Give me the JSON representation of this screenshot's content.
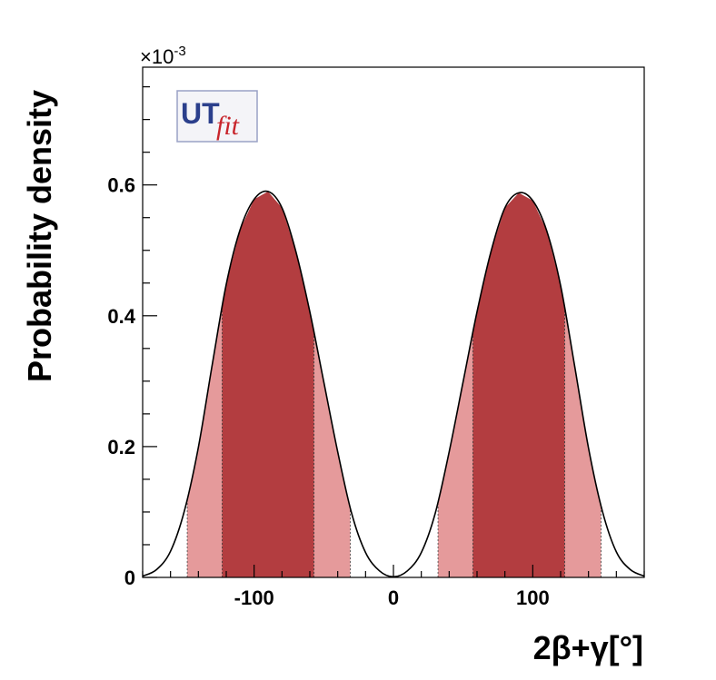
{
  "chart_data": {
    "type": "area",
    "xlabel": "2β+γ[°]",
    "ylabel": "Probability density",
    "y_exponent_label": "×10",
    "y_exponent_power": "-3",
    "xlim": [
      -180,
      180
    ],
    "ylim": [
      0,
      0.00078
    ],
    "x_ticks": [
      {
        "value": -100,
        "label": "-100"
      },
      {
        "value": 0,
        "label": "0"
      },
      {
        "value": 100,
        "label": "100"
      }
    ],
    "y_ticks": [
      {
        "value": 0,
        "label": "0"
      },
      {
        "value": 0.0002,
        "label": "0.2"
      },
      {
        "value": 0.0004,
        "label": "0.4"
      },
      {
        "value": 0.0006,
        "label": "0.6"
      }
    ],
    "grid": false,
    "x": [
      -180,
      -170,
      -160,
      -150,
      -140,
      -130,
      -120,
      -110,
      -100,
      -90,
      -80,
      -70,
      -60,
      -50,
      -40,
      -30,
      -20,
      -10,
      0,
      10,
      20,
      30,
      40,
      50,
      60,
      70,
      80,
      90,
      100,
      110,
      120,
      130,
      140,
      150,
      160,
      170,
      180
    ],
    "y": [
      2e-06,
      1.2e-05,
      4e-05,
      0.000102,
      0.000199,
      0.000326,
      0.000448,
      0.000532,
      0.000578,
      0.00059,
      0.000565,
      0.000498,
      0.000406,
      0.000299,
      0.000192,
      9.8e-05,
      3.8e-05,
      1e-05,
      1e-06,
      1e-05,
      3.8e-05,
      9.8e-05,
      0.000192,
      0.000299,
      0.000406,
      0.000498,
      0.000565,
      0.000588,
      0.000576,
      0.00053,
      0.000446,
      0.000324,
      0.000198,
      0.000101,
      3.9e-05,
      1.2e-05,
      2e-06
    ],
    "regions": [
      {
        "range": [
          -148,
          -123
        ],
        "level": "95%",
        "color": "#e59a9b"
      },
      {
        "range": [
          -123,
          -57
        ],
        "level": "68%",
        "color": "#b33d40"
      },
      {
        "range": [
          -57,
          -31
        ],
        "level": "95%",
        "color": "#e59a9b"
      },
      {
        "range": [
          32,
          57
        ],
        "level": "95%",
        "color": "#e59a9b"
      },
      {
        "range": [
          57,
          123
        ],
        "level": "68%",
        "color": "#b33d40"
      },
      {
        "range": [
          123,
          149
        ],
        "level": "95%",
        "color": "#e59a9b"
      }
    ],
    "curve_color": "#000000",
    "logo": {
      "part1": "UT",
      "part2": "fit"
    }
  }
}
